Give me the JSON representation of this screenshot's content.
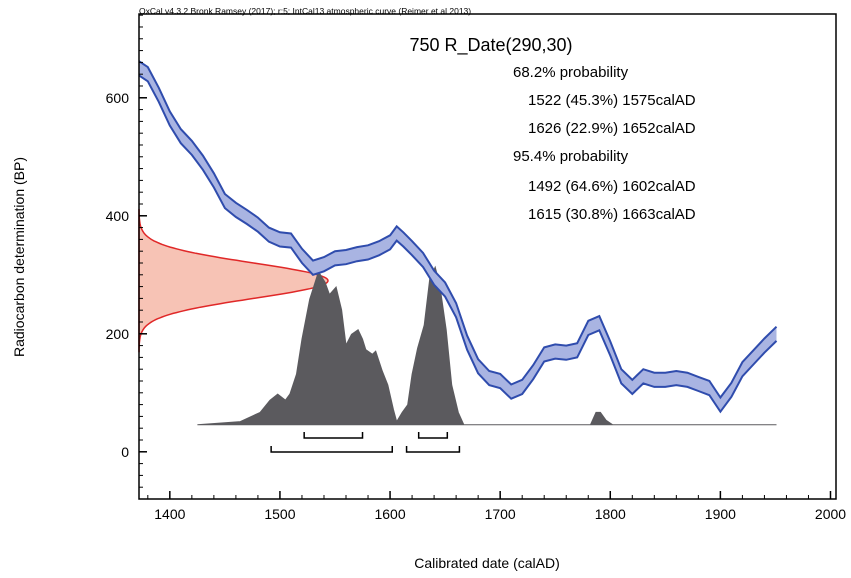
{
  "chart_data": {
    "type": "calibration",
    "header": "OxCal v4.3.2 Bronk Ramsey (2017); r:5; IntCal13 atmospheric curve (Reimer et al 2013)",
    "title": "750 R_Date(290,30)",
    "xlabel": "Calibrated date (calAD)",
    "ylabel": "Radiocarbon determination (BP)",
    "xlim": [
      1372,
      2005
    ],
    "ylim": [
      -80,
      742
    ],
    "xticks": [
      1400,
      1500,
      1600,
      1700,
      1800,
      1900,
      2000
    ],
    "yticks": [
      0,
      200,
      400,
      600
    ],
    "xminorticks": [
      1380,
      1400,
      1420,
      1440,
      1460,
      1480,
      1500,
      1520,
      1540,
      1560,
      1580,
      1600,
      1620,
      1640,
      1660,
      1680,
      1700,
      1720,
      1740,
      1760,
      1780,
      1800,
      1820,
      1840,
      1860,
      1880,
      1900,
      1920,
      1940,
      1960,
      1980,
      2000
    ],
    "yminorticks": [
      -80,
      -60,
      -40,
      -20,
      0,
      20,
      40,
      60,
      80,
      100,
      120,
      140,
      160,
      180,
      200,
      220,
      240,
      260,
      280,
      300,
      320,
      340,
      360,
      380,
      400,
      420,
      440,
      460,
      480,
      500,
      520,
      540,
      560,
      580,
      600,
      620,
      640,
      660,
      680,
      700,
      720,
      740
    ],
    "curve": {
      "color": "#2f4cad",
      "fill": "#a9b4e2",
      "x": [
        1372,
        1380,
        1390,
        1400,
        1410,
        1420,
        1430,
        1440,
        1450,
        1460,
        1470,
        1480,
        1490,
        1500,
        1510,
        1520,
        1530,
        1540,
        1550,
        1560,
        1570,
        1580,
        1590,
        1600,
        1606,
        1612,
        1620,
        1630,
        1640,
        1650,
        1660,
        1670,
        1680,
        1690,
        1700,
        1710,
        1720,
        1730,
        1740,
        1750,
        1760,
        1770,
        1780,
        1790,
        1800,
        1810,
        1820,
        1830,
        1840,
        1850,
        1860,
        1870,
        1880,
        1890,
        1900,
        1910,
        1920,
        1930,
        1940,
        1951
      ],
      "upper": [
        662,
        652,
        617,
        577,
        547,
        527,
        502,
        472,
        437,
        422,
        410,
        397,
        380,
        372,
        370,
        344,
        324,
        330,
        340,
        342,
        347,
        350,
        357,
        367,
        382,
        372,
        357,
        337,
        307,
        287,
        252,
        197,
        157,
        137,
        132,
        114,
        122,
        147,
        177,
        182,
        180,
        184,
        222,
        230,
        187,
        140,
        122,
        140,
        134,
        134,
        137,
        134,
        127,
        120,
        92,
        117,
        152,
        172,
        192,
        212
      ],
      "lower": [
        638,
        628,
        593,
        553,
        523,
        503,
        478,
        448,
        413,
        398,
        386,
        373,
        356,
        348,
        346,
        320,
        300,
        306,
        316,
        318,
        323,
        326,
        333,
        343,
        358,
        348,
        333,
        313,
        283,
        263,
        228,
        173,
        133,
        113,
        108,
        90,
        98,
        123,
        153,
        158,
        156,
        160,
        198,
        206,
        163,
        116,
        98,
        116,
        110,
        110,
        113,
        110,
        103,
        96,
        68,
        93,
        128,
        148,
        168,
        188
      ]
    },
    "measurement": {
      "mean": 290,
      "error": 30,
      "color": "#e02828",
      "fill": "#f6b8a8"
    },
    "probability": {
      "color": "#5b5a5e",
      "x": [
        1425,
        1464,
        1482,
        1491,
        1498,
        1505,
        1509,
        1515,
        1520,
        1527,
        1535,
        1541,
        1545,
        1551,
        1556,
        1560,
        1565,
        1571,
        1575,
        1578,
        1584,
        1587,
        1593,
        1598,
        1603,
        1606,
        1611,
        1616,
        1620,
        1625,
        1631,
        1636,
        1641,
        1645,
        1651,
        1656,
        1662,
        1667,
        1782,
        1787,
        1791,
        1796,
        1802,
        1951
      ],
      "values": [
        0,
        0.02,
        0.08,
        0.16,
        0.2,
        0.16,
        0.2,
        0.33,
        0.56,
        0.82,
        1,
        0.93,
        0.85,
        0.9,
        0.75,
        0.52,
        0.59,
        0.62,
        0.56,
        0.49,
        0.46,
        0.48,
        0.35,
        0.26,
        0.1,
        0.02,
        0.08,
        0.13,
        0.33,
        0.5,
        0.65,
        0.95,
        1.03,
        0.92,
        0.62,
        0.26,
        0.08,
        0,
        0,
        0.08,
        0.08,
        0.03,
        0,
        0
      ]
    },
    "ranges": [
      {
        "label": "68.2% probability",
        "items": [
          {
            "text": "1522 (45.3%) 1575calAD",
            "from": 1522,
            "to": 1575
          },
          {
            "text": "1626 (22.9%) 1652calAD",
            "from": 1626,
            "to": 1652
          }
        ]
      },
      {
        "label": "95.4% probability",
        "items": [
          {
            "text": "1492 (64.6%) 1602calAD",
            "from": 1492,
            "to": 1602
          },
          {
            "text": "1615 (30.8%) 1663calAD",
            "from": 1615,
            "to": 1663
          }
        ]
      }
    ]
  }
}
